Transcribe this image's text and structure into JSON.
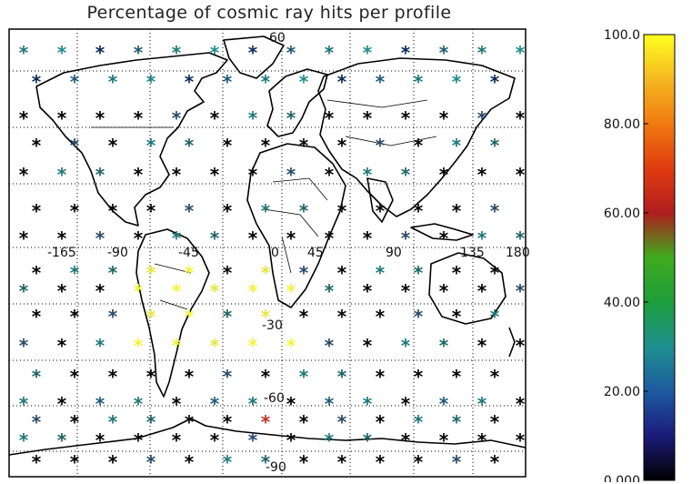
{
  "title": "Percentage of cosmic ray hits per profile",
  "map": {
    "longitude_labels": [
      "-165",
      "-90",
      "-45",
      "0",
      "45",
      "90",
      "135",
      "180"
    ],
    "latitude_labels": [
      "60",
      "-30",
      "-60",
      "-90"
    ]
  },
  "colorbar": {
    "tick_labels": [
      "100.0",
      "80.00",
      "60.00",
      "40.00",
      "20.00",
      "0.000"
    ],
    "range": [
      0,
      100
    ],
    "colors": [
      "#000000",
      "#1b1b7a",
      "#1e5aa0",
      "#1e8f8f",
      "#1e9e3c",
      "#3faa1e",
      "#b01e1e",
      "#e03c10",
      "#f07a10",
      "#f5b820",
      "#ffff20"
    ]
  }
}
